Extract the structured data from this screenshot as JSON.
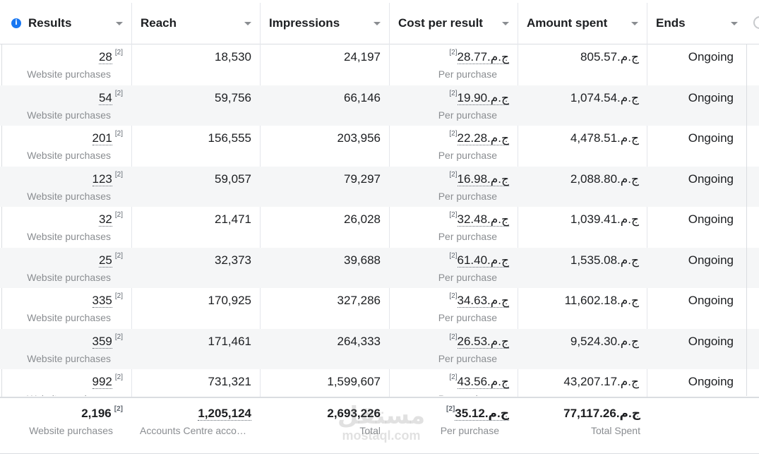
{
  "header": {
    "columns": [
      {
        "key": "results",
        "label": "Results"
      },
      {
        "key": "reach",
        "label": "Reach"
      },
      {
        "key": "impressions",
        "label": "Impressions"
      },
      {
        "key": "cost",
        "label": "Cost per result"
      },
      {
        "key": "amount",
        "label": "Amount spent"
      },
      {
        "key": "ends",
        "label": "Ends"
      }
    ]
  },
  "rows": [
    {
      "results": "28",
      "results_sub": "Website purchases",
      "reach": "18,530",
      "impressions": "24,197",
      "cost": "ج.م.28.77",
      "cost_sub": "Per purchase",
      "amount": "ج.م.805.57",
      "ends": "Ongoing"
    },
    {
      "results": "54",
      "results_sub": "Website purchases",
      "reach": "59,756",
      "impressions": "66,146",
      "cost": "ج.م.19.90",
      "cost_sub": "Per purchase",
      "amount": "ج.م.1,074.54",
      "ends": "Ongoing"
    },
    {
      "results": "201",
      "results_sub": "Website purchases",
      "reach": "156,555",
      "impressions": "203,956",
      "cost": "ج.م.22.28",
      "cost_sub": "Per purchase",
      "amount": "ج.م.4,478.51",
      "ends": "Ongoing"
    },
    {
      "results": "123",
      "results_sub": "Website purchases",
      "reach": "59,057",
      "impressions": "79,297",
      "cost": "ج.م.16.98",
      "cost_sub": "Per purchase",
      "amount": "ج.م.2,088.80",
      "ends": "Ongoing"
    },
    {
      "results": "32",
      "results_sub": "Website purchases",
      "reach": "21,471",
      "impressions": "26,028",
      "cost": "ج.م.32.48",
      "cost_sub": "Per purchase",
      "amount": "ج.م.1,039.41",
      "ends": "Ongoing"
    },
    {
      "results": "25",
      "results_sub": "Website purchases",
      "reach": "32,373",
      "impressions": "39,688",
      "cost": "ج.م.61.40",
      "cost_sub": "Per purchase",
      "amount": "ج.م.1,535.08",
      "ends": "Ongoing"
    },
    {
      "results": "335",
      "results_sub": "Website purchases",
      "reach": "170,925",
      "impressions": "327,286",
      "cost": "ج.م.34.63",
      "cost_sub": "Per purchase",
      "amount": "ج.م.11,602.18",
      "ends": "Ongoing"
    },
    {
      "results": "359",
      "results_sub": "Website purchases",
      "reach": "171,461",
      "impressions": "264,333",
      "cost": "ج.م.26.53",
      "cost_sub": "Per purchase",
      "amount": "ج.م.9,524.30",
      "ends": "Ongoing"
    },
    {
      "results": "992",
      "results_sub": "Website purchases",
      "reach": "731,321",
      "impressions": "1,599,607",
      "cost": "ج.م.43.56",
      "cost_sub": "Per purchase",
      "amount": "ج.م.43,207.17",
      "ends": "Ongoing"
    }
  ],
  "superscript": "[2]",
  "footer": {
    "results": "2,196",
    "results_sub": "Website purchases",
    "reach": "1,205,124",
    "reach_sub": "Accounts Centre acco…",
    "impressions": "2,693,226",
    "impressions_sub": "Total",
    "cost": "ج.م.35.12",
    "cost_sub": "Per purchase",
    "amount": "ج.م.77,117.26",
    "amount_sub": "Total Spent"
  },
  "watermark": {
    "big": "مستقل",
    "small": "mostaql.com"
  },
  "colors": {
    "info_icon": "#1877f2",
    "row_alt": "#f5f6f7",
    "border": "#dadde1"
  }
}
